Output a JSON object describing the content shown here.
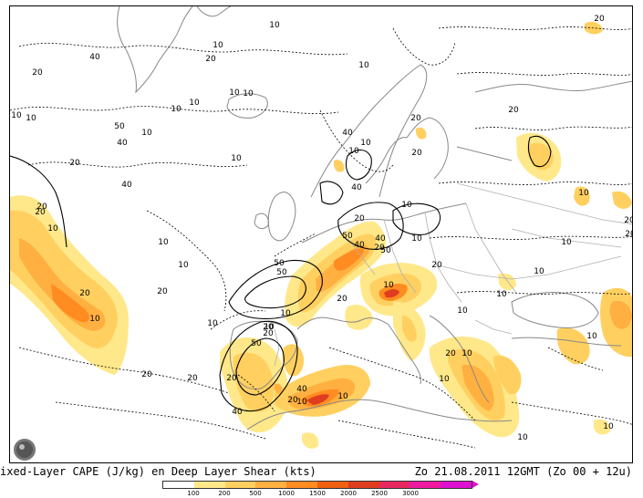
{
  "caption": {
    "left": "ixed-Layer CAPE (J/kg) en Deep Layer Shear (kts)",
    "right": "Zo 21.08.2011  12GMT (Zo 00 + 12u)"
  },
  "legend": {
    "colors": [
      "#ffffff",
      "#ffe88a",
      "#ffd060",
      "#ffb040",
      "#ff8c20",
      "#f06010",
      "#e03c20",
      "#e82860",
      "#f01aa0",
      "#e010d0"
    ],
    "ticks": [
      "100",
      "200",
      "500",
      "1000",
      "1500",
      "2000",
      "2500",
      "3000"
    ]
  },
  "contour_labels": [
    {
      "text": "20"
    },
    {
      "text": "40"
    },
    {
      "text": "20"
    },
    {
      "text": "10"
    },
    {
      "text": "10"
    },
    {
      "text": "10"
    },
    {
      "text": "10"
    },
    {
      "text": "10"
    },
    {
      "text": "10"
    },
    {
      "text": "10"
    },
    {
      "text": "50"
    },
    {
      "text": "40"
    },
    {
      "text": "20"
    },
    {
      "text": "40"
    },
    {
      "text": "10"
    },
    {
      "text": "20"
    },
    {
      "text": "20"
    },
    {
      "text": "10"
    },
    {
      "text": "10"
    },
    {
      "text": "10"
    },
    {
      "text": "20"
    },
    {
      "text": "10"
    },
    {
      "text": "40"
    },
    {
      "text": "20"
    },
    {
      "text": "20"
    },
    {
      "text": "20"
    },
    {
      "text": "10"
    },
    {
      "text": "10"
    },
    {
      "text": "40"
    },
    {
      "text": "20"
    },
    {
      "text": "10"
    },
    {
      "text": "10"
    },
    {
      "text": "20"
    },
    {
      "text": "50"
    },
    {
      "text": "40"
    },
    {
      "text": "50"
    },
    {
      "text": "40"
    },
    {
      "text": "20"
    },
    {
      "text": "10"
    },
    {
      "text": "20"
    },
    {
      "text": "10"
    },
    {
      "text": "50"
    },
    {
      "text": "50"
    },
    {
      "text": "20"
    },
    {
      "text": "10"
    },
    {
      "text": "40"
    },
    {
      "text": "50"
    },
    {
      "text": "20"
    },
    {
      "text": "10"
    },
    {
      "text": "20"
    },
    {
      "text": "10"
    },
    {
      "text": "20"
    },
    {
      "text": "10"
    },
    {
      "text": "20"
    },
    {
      "text": "10"
    },
    {
      "text": "20"
    },
    {
      "text": "20"
    },
    {
      "text": "40"
    },
    {
      "text": "10"
    },
    {
      "text": "10"
    },
    {
      "text": "20"
    },
    {
      "text": "10"
    },
    {
      "text": "10"
    },
    {
      "text": "10"
    },
    {
      "text": "10"
    },
    {
      "text": "10"
    },
    {
      "text": "10"
    },
    {
      "text": "20"
    },
    {
      "text": "10"
    },
    {
      "text": "20"
    },
    {
      "text": "10"
    },
    {
      "text": "10"
    },
    {
      "text": "10"
    },
    {
      "text": "20"
    }
  ]
}
